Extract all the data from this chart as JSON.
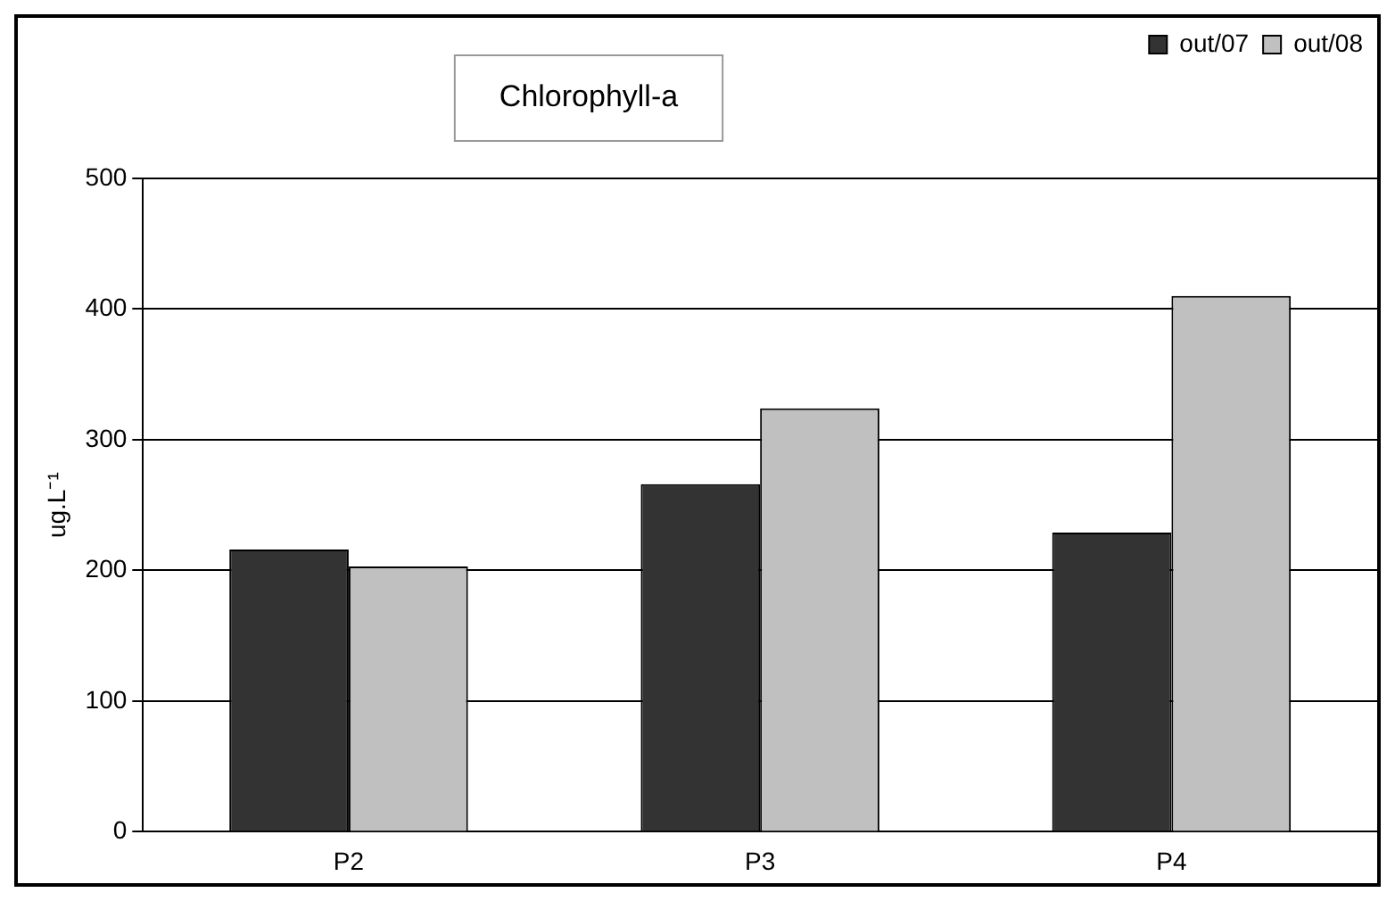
{
  "chart_data": {
    "type": "bar",
    "title": "Chlorophyll-a",
    "ylabel": "ug.L⁻¹",
    "categories": [
      "P2",
      "P3",
      "P4"
    ],
    "series": [
      {
        "name": "out/07",
        "color": "#333333",
        "values": [
          216,
          266,
          229
        ]
      },
      {
        "name": "out/08",
        "color": "#c0c0c0",
        "values": [
          203,
          324,
          410
        ]
      }
    ],
    "ylim": [
      0,
      500
    ],
    "yticks": [
      0,
      100,
      200,
      300,
      400,
      500
    ],
    "grid": "y",
    "legend": "top right"
  }
}
